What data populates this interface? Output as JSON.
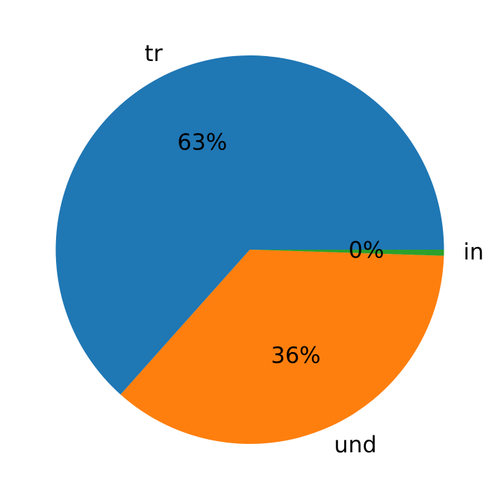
{
  "chart_data": {
    "type": "pie",
    "start_angle_deg": 0,
    "direction": "counterclockwise",
    "slices": [
      {
        "label": "tr",
        "value": 63.4,
        "pct_label": "63%",
        "color": "#1f77b4"
      },
      {
        "label": "und",
        "value": 36.1,
        "pct_label": "36%",
        "color": "#ff7f0e"
      },
      {
        "label": "in",
        "value": 0.5,
        "pct_label": "0%",
        "color": "#2ca02c"
      }
    ]
  }
}
